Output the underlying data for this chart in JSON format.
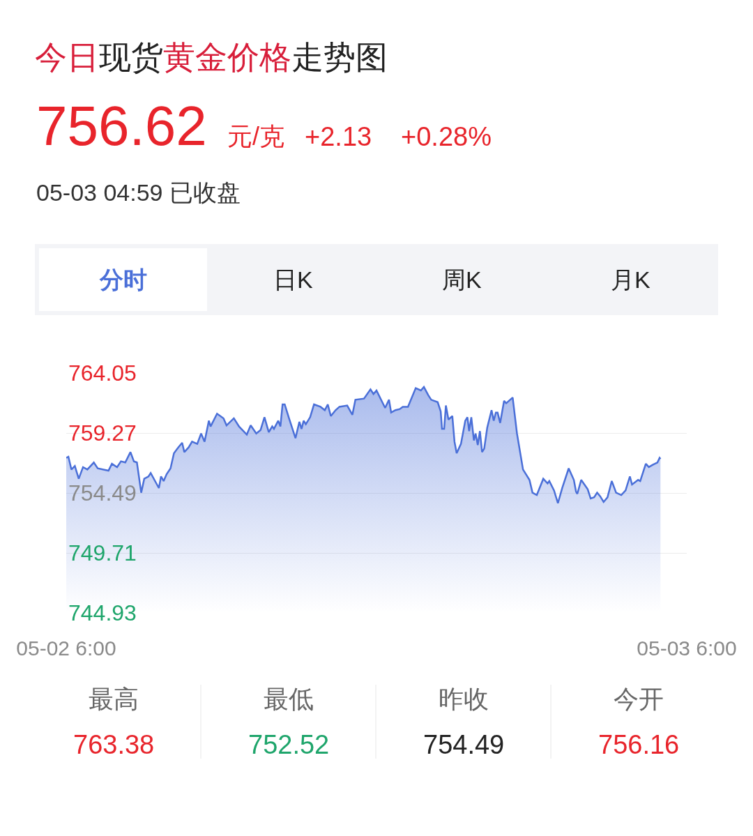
{
  "chart_data": {
    "type": "area",
    "title": "今日现货黄金价格走势图",
    "x": [
      "--05-02T06:00",
      "--05-02T06:05",
      "--05-02T06:12",
      "--05-02T06:20",
      "--05-02T06:29",
      "--05-02T06:39",
      "--05-02T06:49",
      "--05-02T07:04",
      "--05-02T07:13",
      "--05-02T07:38",
      "--05-02T07:46",
      "--05-02T07:58",
      "--05-02T08:07",
      "--05-02T08:17",
      "--05-02T08:29",
      "--05-02T08:37",
      "--05-02T08:44",
      "--05-02T08:54",
      "--05-02T09:01",
      "--05-02T09:11",
      "--05-02T09:16",
      "--05-02T09:35",
      "--05-02T09:40",
      "--05-02T09:46",
      "--05-02T09:53",
      "--05-02T10:02",
      "--05-02T10:10",
      "--05-02T10:20",
      "--05-02T10:29",
      "--05-02T10:34",
      "--05-02T10:44",
      "--05-02T10:52",
      "--05-02T11:04",
      "--05-02T11:13",
      "--05-02T11:21",
      "--05-02T11:31",
      "--05-02T11:35",
      "--05-02T11:50",
      "--05-02T12:05",
      "--05-02T12:12",
      "--05-02T12:29",
      "--05-02T12:41",
      "--05-02T12:59",
      "--05-02T13:08",
      "--05-02T13:21",
      "--05-02T13:31",
      "--05-02T13:40",
      "--05-02T13:50",
      "--05-02T13:58",
      "--05-02T14:02",
      "--05-02T14:12",
      "--05-02T14:17",
      "--05-02T14:22",
      "--05-02T14:27",
      "--05-02T14:37",
      "--05-02T14:52",
      "--05-02T15:01",
      "--05-02T15:06",
      "--05-02T15:11",
      "--05-02T15:16",
      "--05-02T15:26",
      "--05-02T15:35",
      "--05-02T15:50",
      "--05-02T16:00",
      "--05-02T16:07",
      "--05-02T16:14",
      "--05-02T16:25",
      "--05-02T16:34",
      "--05-02T16:52",
      "--05-02T17:04",
      "--05-02T17:11",
      "--05-02T17:31",
      "--05-02T17:46",
      "--05-02T17:53",
      "--05-02T18:00",
      "--05-02T18:20",
      "--05-02T18:29",
      "--05-02T18:34",
      "--05-02T18:44",
      "--05-02T18:54",
      "--05-02T19:01",
      "--05-02T19:13",
      "--05-02T19:31",
      "--05-02T19:43",
      "--05-02T19:50",
      "--05-02T20:00",
      "--05-02T20:07",
      "--05-02T20:22",
      "--05-02T20:29",
      "--05-02T20:32",
      "--05-02T20:37",
      "--05-02T20:41",
      "--05-02T20:47",
      "--05-02T20:56",
      "--05-02T21:01",
      "--05-02T21:06",
      "--05-02T21:16",
      "--05-02T21:26",
      "--05-02T21:31",
      "--05-02T21:35",
      "--05-02T21:40",
      "--05-02T21:46",
      "--05-02T21:50",
      "--05-02T21:55",
      "--05-02T22:00",
      "--05-02T22:05",
      "--05-02T22:10",
      "--05-02T22:17",
      "--05-02T22:27",
      "--05-02T22:32",
      "--05-02T22:37",
      "--05-02T22:41",
      "--05-02T22:47",
      "--05-02T22:56",
      "--05-02T23:01",
      "--05-02T23:16",
      "--05-02T23:26",
      "--05-02T23:40",
      "--05-02T23:55",
      "--05-03T00:02",
      "--05-03T00:12",
      "--05-03T00:27",
      "--05-03T00:37",
      "--05-03T00:41",
      "--05-03T00:52",
      "--05-03T01:01",
      "--05-03T01:11",
      "--05-03T01:26",
      "--05-03T01:38",
      "--05-03T01:43",
      "--05-03T01:46",
      "--05-03T01:55",
      "--05-03T02:10",
      "--05-03T02:17",
      "--05-03T02:25",
      "--05-03T02:32",
      "--05-03T02:39",
      "--05-03T02:47",
      "--05-03T02:56",
      "--05-03T03:06",
      "--05-03T03:16",
      "--05-03T03:28",
      "--05-03T03:38",
      "--05-03T03:48",
      "--05-03T03:53",
      "--05-03T04:07",
      "--05-03T04:12",
      "--05-03T04:25",
      "--05-03T04:32",
      "--05-03T04:41",
      "--05-03T04:52",
      "--05-03T04:57",
      "--05-03T04:59"
    ],
    "series": [
      {
        "color": "#4a6fd8",
        "values": [
          757.29,
          757.38,
          756.36,
          756.64,
          755.62,
          756.55,
          756.36,
          756.92,
          756.45,
          756.27,
          756.82,
          756.55,
          757.01,
          756.92,
          757.75,
          757.01,
          756.92,
          754.51,
          755.62,
          755.81,
          756.08,
          754.88,
          755.81,
          755.44,
          755.99,
          756.45,
          757.66,
          758.12,
          758.49,
          757.75,
          758.12,
          758.58,
          758.4,
          759.23,
          758.58,
          760.25,
          759.79,
          760.81,
          760.44,
          759.88,
          760.44,
          759.79,
          759.14,
          759.88,
          759.23,
          759.51,
          760.53,
          759.33,
          759.79,
          759.6,
          760.25,
          759.79,
          761.55,
          761.55,
          760.44,
          758.86,
          760.16,
          759.6,
          760.25,
          759.97,
          760.53,
          761.55,
          761.36,
          761.09,
          761.55,
          760.62,
          761.09,
          761.36,
          761.46,
          760.72,
          761.92,
          762.01,
          762.75,
          762.38,
          762.66,
          761.27,
          761.92,
          760.9,
          761.09,
          761.18,
          761.36,
          761.36,
          762.85,
          762.66,
          762.94,
          762.29,
          761.92,
          761.73,
          760.99,
          759.6,
          759.6,
          761.46,
          760.34,
          760.62,
          758.58,
          757.66,
          758.4,
          760.25,
          760.53,
          759.42,
          760.53,
          758.68,
          759.23,
          758.31,
          759.42,
          757.75,
          758.03,
          759.7,
          761.09,
          760.25,
          760.9,
          760.9,
          760.07,
          761.83,
          761.64,
          762.1,
          759.23,
          756.36,
          755.53,
          754.51,
          754.32,
          755.62,
          755.25,
          755.44,
          754.69,
          753.67,
          754.88,
          756.45,
          755.53,
          754.6,
          754.42,
          755.53,
          754.79,
          754.05,
          754.14,
          754.51,
          754.23,
          753.77,
          754.14,
          755.44,
          754.51,
          754.32,
          754.69,
          755.81,
          755.16,
          755.53,
          755.44,
          756.82,
          756.55,
          756.73,
          756.92,
          757.29,
          757.2
        ]
      }
    ],
    "xlim": [
      "--05-02T06:00",
      "--05-03T06:00"
    ],
    "xticks": [
      {
        "value": "--05-02T06:00",
        "label": "05-02 6:00"
      },
      {
        "value": "--05-03T06:00",
        "label": "05-03 6:00"
      }
    ],
    "ylim": [
      744.93,
      764.05
    ],
    "yticks": [
      744.93,
      749.71,
      754.49,
      759.27,
      764.05
    ],
    "grid": "y",
    "annotations": [
      "756.62",
      "元/克",
      "+2.13",
      "+0.28%",
      "05-03 04:59 已收盘",
      "分时",
      "日K",
      "周K",
      "月K",
      "最高",
      "763.38",
      "最低",
      "752.52",
      "昨收",
      "754.49",
      "今开",
      "756.16"
    ]
  }
}
